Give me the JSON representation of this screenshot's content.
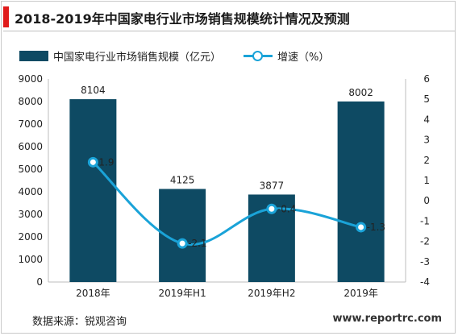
{
  "header": {
    "title": "2018-2019年中国家电行业市场销售规模统计情况及预测"
  },
  "footer": {
    "source": "数据来源：锐观咨询",
    "url": "www.reportrc.com"
  },
  "colors": {
    "bar": "#0e4a63",
    "line": "#1aa3d8",
    "accent": "#e01b1b"
  },
  "chart_data": {
    "type": "bar",
    "categories": [
      "2018年",
      "2019年H1",
      "2019年H2",
      "2019年"
    ],
    "series": [
      {
        "name": "中国家电行业市场销售规模（亿元）",
        "type": "bar",
        "axis": "left",
        "values": [
          8104,
          4125,
          3877,
          8002
        ]
      },
      {
        "name": "增速（%）",
        "type": "line",
        "axis": "right",
        "values": [
          1.9,
          -2.1,
          -0.4,
          -1.3
        ]
      }
    ],
    "data_labels": {
      "bar": [
        "8104",
        "4125",
        "3877",
        "8002"
      ],
      "line": [
        "1.9",
        "-2.1",
        "-0.4",
        "-1.3"
      ]
    },
    "ylim_left": [
      0,
      9000
    ],
    "yticks_left": [
      0,
      1000,
      2000,
      3000,
      4000,
      5000,
      6000,
      7000,
      8000,
      9000
    ],
    "ylim_right": [
      -4,
      6
    ],
    "yticks_right": [
      -4,
      -3,
      -2,
      -1,
      0,
      1,
      2,
      3,
      4,
      5,
      6
    ],
    "legend_position": "top",
    "grid": false
  }
}
